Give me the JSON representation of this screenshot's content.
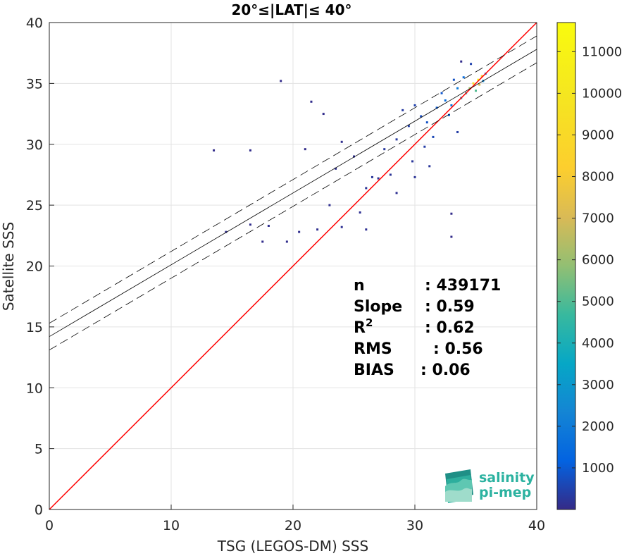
{
  "chart_data": {
    "type": "heatmap",
    "title": "20°≤|LAT|≤ 40°",
    "xlabel": "TSG (LEGOS-DM) SSS",
    "ylabel": "Satellite SSS",
    "xlim": [
      0,
      40
    ],
    "ylim": [
      0,
      40
    ],
    "x_ticks": [
      0,
      10,
      20,
      30,
      40
    ],
    "y_ticks": [
      0,
      5,
      10,
      15,
      20,
      25,
      30,
      35,
      40
    ],
    "grid": true,
    "colorbar": {
      "range": [
        0,
        11700
      ],
      "ticks": [
        1000,
        2000,
        3000,
        4000,
        5000,
        6000,
        7000,
        8000,
        9000,
        10000,
        11000
      ],
      "colormap": "parula"
    },
    "reference_line": {
      "slope": 1,
      "intercept": 0,
      "color": "#ff0000"
    },
    "fit_line": {
      "slope": 0.59,
      "intercept": 14.2,
      "color": "#000000"
    },
    "fit_bounds": [
      {
        "slope": 0.59,
        "intercept": 15.3
      },
      {
        "slope": 0.59,
        "intercept": 13.1
      }
    ],
    "stats": [
      {
        "label": "n",
        "sep": ":",
        "value": "439171"
      },
      {
        "label": "Slope",
        "sep": ":",
        "value": "0.59"
      },
      {
        "label": "R",
        "sup": "2",
        "sep": ":",
        "value": "0.62"
      },
      {
        "label": "RMS",
        "sep": ":",
        "value": "0.56"
      },
      {
        "label": "BIAS",
        "sep": ":",
        "value": "0.06"
      }
    ],
    "density_points": [
      [
        35.2,
        35.3,
        11500
      ],
      [
        34.8,
        35.0,
        9000
      ],
      [
        35.5,
        35.6,
        8000
      ],
      [
        34.5,
        34.6,
        6000
      ],
      [
        35.0,
        34.4,
        5000
      ],
      [
        34.2,
        34.2,
        4000
      ],
      [
        33.8,
        33.8,
        3000
      ],
      [
        35.6,
        35.2,
        2500
      ],
      [
        33.5,
        34.6,
        2000
      ],
      [
        33.0,
        33.2,
        1800
      ],
      [
        32.5,
        33.6,
        1500
      ],
      [
        34.0,
        35.5,
        1500
      ],
      [
        32.8,
        32.4,
        1200
      ],
      [
        31.8,
        33.0,
        1000
      ],
      [
        32.2,
        34.2,
        900
      ],
      [
        31.0,
        31.8,
        800
      ],
      [
        33.2,
        35.3,
        800
      ],
      [
        30.5,
        32.3,
        700
      ],
      [
        31.5,
        30.6,
        600
      ],
      [
        30.0,
        33.2,
        500
      ],
      [
        34.6,
        36.6,
        500
      ],
      [
        29.5,
        31.5,
        450
      ],
      [
        33.5,
        31.0,
        400
      ],
      [
        30.8,
        29.8,
        400
      ],
      [
        29.0,
        32.8,
        350
      ],
      [
        28.5,
        30.4,
        300
      ],
      [
        27.5,
        29.6,
        300
      ],
      [
        31.2,
        28.2,
        250
      ],
      [
        29.8,
        28.6,
        250
      ],
      [
        27.0,
        27.2,
        200
      ],
      [
        26.0,
        26.4,
        200
      ],
      [
        25.5,
        24.4,
        150
      ],
      [
        24.0,
        23.2,
        150
      ],
      [
        22.0,
        23.0,
        120
      ],
      [
        20.5,
        22.8,
        100
      ],
      [
        18.0,
        23.3,
        100
      ],
      [
        16.5,
        23.4,
        80
      ],
      [
        14.5,
        22.8,
        80
      ],
      [
        19.5,
        22.0,
        80
      ],
      [
        17.5,
        22.0,
        60
      ],
      [
        16.5,
        29.5,
        60
      ],
      [
        13.5,
        29.5,
        50
      ],
      [
        19.0,
        35.2,
        40
      ],
      [
        21.0,
        29.6,
        40
      ],
      [
        33.0,
        24.3,
        40
      ],
      [
        33.0,
        22.4,
        40
      ],
      [
        33.8,
        36.8,
        60
      ],
      [
        25.0,
        29.0,
        150
      ],
      [
        23.5,
        28.0,
        120
      ],
      [
        26.5,
        27.3,
        250
      ],
      [
        28.0,
        27.5,
        200
      ],
      [
        30.0,
        27.3,
        200
      ],
      [
        24.0,
        30.2,
        100
      ],
      [
        23.0,
        25.0,
        120
      ],
      [
        28.5,
        26.0,
        150
      ],
      [
        26.0,
        23.0,
        150
      ],
      [
        21.5,
        33.5,
        60
      ],
      [
        22.5,
        32.5,
        60
      ],
      [
        35.8,
        35.8,
        2000
      ],
      [
        35.3,
        34.9,
        7000
      ]
    ]
  },
  "logo": {
    "line1": "salinity",
    "line2": "pi-mep"
  }
}
